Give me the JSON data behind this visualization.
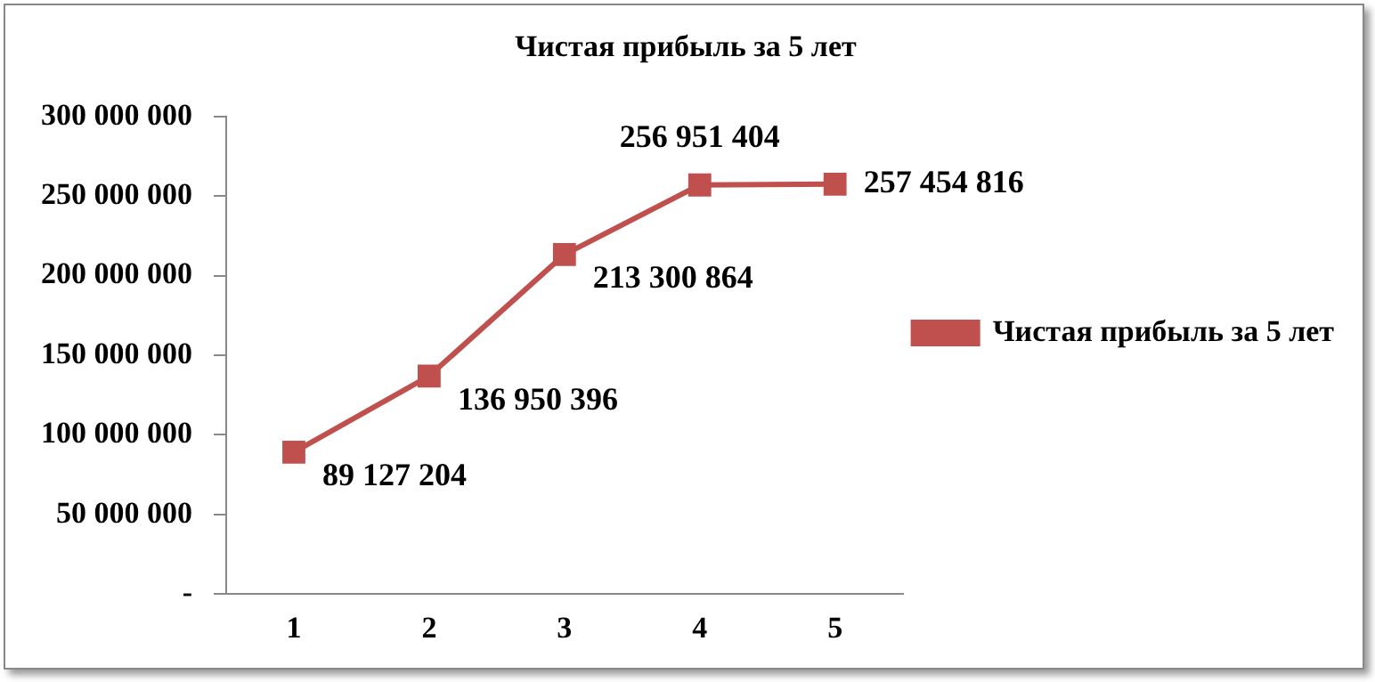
{
  "chart_data": {
    "type": "line",
    "title": "Чистая прибыль за 5 лет",
    "categories": [
      "1",
      "2",
      "3",
      "4",
      "5"
    ],
    "series": [
      {
        "name": "Чистая прибыль за 5 лет",
        "color": "#c0504d",
        "values": [
          89127204,
          136950396,
          213300864,
          256951404,
          257454816
        ],
        "value_labels": [
          "89 127 204",
          "136 950 396",
          "213 300 864",
          "256 951 404",
          "257 454 816"
        ]
      }
    ],
    "ylim": [
      0,
      300000000
    ],
    "yticks": [
      {
        "value": 0,
        "label": "-"
      },
      {
        "value": 50000000,
        "label": "50 000 000"
      },
      {
        "value": 100000000,
        "label": "100 000 000"
      },
      {
        "value": 150000000,
        "label": "150 000 000"
      },
      {
        "value": 200000000,
        "label": "200 000 000"
      },
      {
        "value": 250000000,
        "label": "250 000 000"
      },
      {
        "value": 300000000,
        "label": "300 000 000"
      }
    ],
    "grid": false,
    "legend": "right",
    "marker": "square",
    "line_style": "solid"
  }
}
